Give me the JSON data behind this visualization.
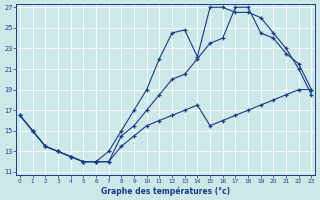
{
  "title": "Graphe des températures (°c)",
  "bg_color": "#cde8e8",
  "line_color": "#1a3a8a",
  "xlim": [
    0,
    23
  ],
  "ylim": [
    11,
    27
  ],
  "xticks": [
    0,
    1,
    2,
    3,
    4,
    5,
    6,
    7,
    8,
    9,
    10,
    11,
    12,
    13,
    14,
    15,
    16,
    17,
    18,
    19,
    20,
    21,
    22,
    23
  ],
  "yticks": [
    11,
    13,
    15,
    17,
    19,
    21,
    23,
    25,
    27
  ],
  "series1_x": [
    0,
    1,
    2,
    3,
    4,
    5,
    6,
    7,
    8,
    9,
    10,
    11,
    12,
    13,
    14,
    15,
    16,
    17,
    18,
    19,
    20,
    21,
    22,
    23
  ],
  "series1_y": [
    16.5,
    15.0,
    13.5,
    13.0,
    12.5,
    12.0,
    12.0,
    13.0,
    15.0,
    17.0,
    19.0,
    22.0,
    24.5,
    24.8,
    22.2,
    27.0,
    27.0,
    26.5,
    26.5,
    26.0,
    24.5,
    23.0,
    21.0,
    18.5
  ],
  "series2_x": [
    0,
    1,
    2,
    3,
    4,
    5,
    6,
    7,
    8,
    9,
    10,
    11,
    12,
    13,
    14,
    15,
    16,
    17,
    18,
    19,
    20,
    21,
    22,
    23
  ],
  "series2_y": [
    16.5,
    15.0,
    13.5,
    13.0,
    12.5,
    12.0,
    12.0,
    12.0,
    14.5,
    15.5,
    17.0,
    18.5,
    20.0,
    20.5,
    22.0,
    23.5,
    24.0,
    27.0,
    27.0,
    24.5,
    24.0,
    22.5,
    21.5,
    19.0
  ],
  "series3_x": [
    0,
    1,
    2,
    3,
    4,
    5,
    6,
    7,
    8,
    9,
    10,
    11,
    12,
    13,
    14,
    15,
    16,
    17,
    18,
    19,
    20,
    21,
    22,
    23
  ],
  "series3_y": [
    16.5,
    15.0,
    13.5,
    13.0,
    12.5,
    12.0,
    12.0,
    12.0,
    13.5,
    14.5,
    15.5,
    16.0,
    16.5,
    17.0,
    17.5,
    15.5,
    16.0,
    16.5,
    17.0,
    17.5,
    18.0,
    18.5,
    19.0,
    19.0
  ]
}
